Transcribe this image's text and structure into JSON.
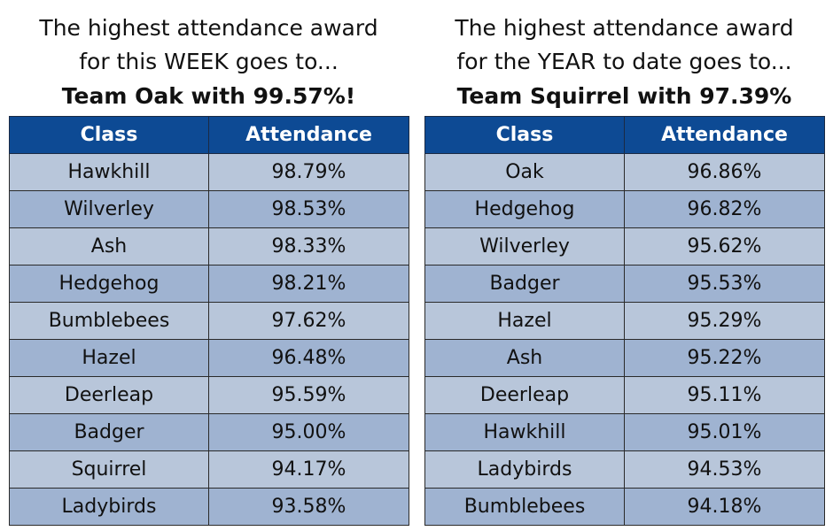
{
  "week": {
    "heading_line1": "The highest attendance award",
    "heading_line2": "for this WEEK goes to...",
    "winner": "Team Oak with 99.57%!",
    "columns": [
      "Class",
      "Attendance"
    ],
    "rows": [
      {
        "class": "Hawkhill",
        "attendance": "98.79%"
      },
      {
        "class": "Wilverley",
        "attendance": "98.53%"
      },
      {
        "class": "Ash",
        "attendance": "98.33%"
      },
      {
        "class": "Hedgehog",
        "attendance": "98.21%"
      },
      {
        "class": "Bumblebees",
        "attendance": "97.62%"
      },
      {
        "class": "Hazel",
        "attendance": "96.48%"
      },
      {
        "class": "Deerleap",
        "attendance": "95.59%"
      },
      {
        "class": "Badger",
        "attendance": "95.00%"
      },
      {
        "class": "Squirrel",
        "attendance": "94.17%"
      },
      {
        "class": "Ladybirds",
        "attendance": "93.58%"
      }
    ]
  },
  "year": {
    "heading_line1": "The highest attendance award",
    "heading_line2": "for the YEAR to date goes to...",
    "winner": "Team Squirrel with 97.39%",
    "columns": [
      "Class",
      "Attendance"
    ],
    "rows": [
      {
        "class": "Oak",
        "attendance": "96.86%"
      },
      {
        "class": "Hedgehog",
        "attendance": "96.82%"
      },
      {
        "class": "Wilverley",
        "attendance": "95.62%"
      },
      {
        "class": "Badger",
        "attendance": "95.53%"
      },
      {
        "class": "Hazel",
        "attendance": "95.29%"
      },
      {
        "class": "Ash",
        "attendance": "95.22%"
      },
      {
        "class": "Deerleap",
        "attendance": "95.11%"
      },
      {
        "class": "Hawkhill",
        "attendance": "95.01%"
      },
      {
        "class": "Ladybirds",
        "attendance": "94.53%"
      },
      {
        "class": "Bumblebees",
        "attendance": "94.18%"
      }
    ]
  },
  "colors": {
    "header_bg": "#0d4a94",
    "header_text": "#ffffff",
    "row_light": "#b8c6da",
    "row_dark": "#9fb3d1"
  }
}
